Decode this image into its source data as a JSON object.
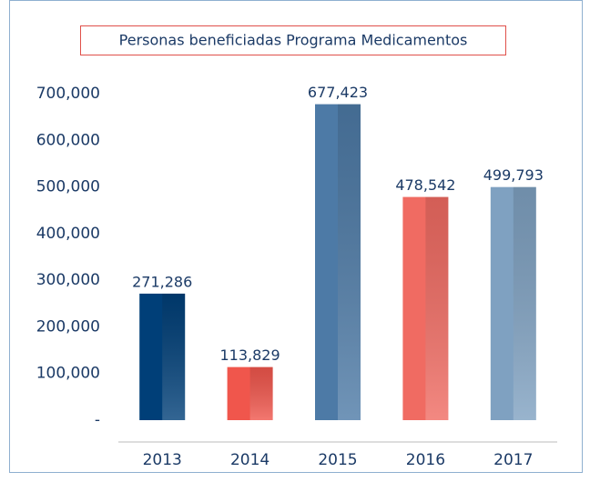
{
  "chart_data": {
    "type": "bar",
    "title": "Personas beneficiadas Programa Medicamentos",
    "categories": [
      "2013",
      "2014",
      "2015",
      "2016",
      "2017"
    ],
    "values": [
      271286,
      113829,
      677423,
      478542,
      499793
    ],
    "value_labels": [
      "271,286",
      "113,829",
      "677,423",
      "478,542",
      "499,793"
    ],
    "colors": [
      "#003f78",
      "#f0564c",
      "#4d7aa6",
      "#f06b62",
      "#7fa1c1"
    ],
    "ylim": [
      0,
      700000
    ],
    "yticks": [
      {
        "value": 0,
        "label": "-"
      },
      {
        "value": 100000,
        "label": "100,000"
      },
      {
        "value": 200000,
        "label": "200,000"
      },
      {
        "value": 300000,
        "label": "300,000"
      },
      {
        "value": 400000,
        "label": "400,000"
      },
      {
        "value": 500000,
        "label": "500,000"
      },
      {
        "value": 600000,
        "label": "600,000"
      },
      {
        "value": 700000,
        "label": "700,000"
      }
    ],
    "grid": false
  }
}
